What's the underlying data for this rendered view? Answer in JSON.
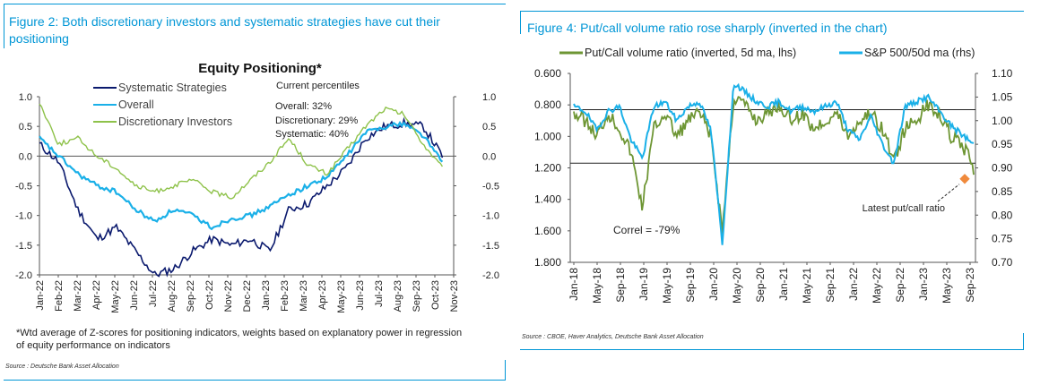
{
  "left_panel": {
    "figure_title": "Figure 2: Both discretionary investors and systematic strategies have cut their positioning",
    "footnote": "*Wtd average of Z-scores for positioning indicators, weights based on explanatory power in regression of equity performance on indicators",
    "source": "Source : Deutsche Bank Asset Allocation"
  },
  "right_panel": {
    "figure_title": "Figure 4: Put/call volume ratio rose sharply (inverted in the chart)",
    "source": "Source : CBOE, Haver Analytics, Deutsche Bank Asset Allocation"
  },
  "colors": {
    "accent": "#0096d6",
    "systematic": "#0b1a6e",
    "overall": "#1ab0e8",
    "discretionary": "#8ec24a",
    "putcall": "#6e9634",
    "sp500": "#1ab0e8",
    "marker": "#f08a3c"
  },
  "chart_data": [
    {
      "type": "line",
      "title": "Equity Positioning*",
      "xlabel": "",
      "ylabel": "",
      "ylim": [
        -2.0,
        1.0
      ],
      "y_ticks": [
        "1.0",
        "0.5",
        "0.0",
        "-0.5",
        "-1.0",
        "-1.5",
        "-2.0"
      ],
      "y_ticks_right": [
        "1.0",
        "0.5",
        "0.0",
        "-0.5",
        "-1.0",
        "-1.5",
        "-2.0"
      ],
      "x_labels": [
        "Jan-22",
        "Feb-22",
        "Mar-22",
        "Apr-22",
        "May-22",
        "Jun-22",
        "Jul-22",
        "Aug-22",
        "Sep-22",
        "Oct-22",
        "Nov-22",
        "Dec-22",
        "Jan-23",
        "Feb-23",
        "Mar-23",
        "Apr-23",
        "May-23",
        "Jun-23",
        "Jul-23",
        "Aug-23",
        "Sep-23",
        "Oct-23",
        "Nov-23"
      ],
      "grid": false,
      "legend_position": "top-left",
      "series": [
        {
          "name": "Systematic Strategies",
          "values": [
            0.2,
            -0.1,
            -0.9,
            -1.4,
            -1.2,
            -1.6,
            -2.0,
            -1.9,
            -1.6,
            -1.4,
            -1.5,
            -1.4,
            -1.6,
            -0.9,
            -0.8,
            -0.5,
            -0.2,
            0.3,
            0.5,
            0.55,
            0.5,
            0.0
          ]
        },
        {
          "name": "Overall",
          "values": [
            0.3,
            0.0,
            -0.3,
            -0.5,
            -0.6,
            -0.9,
            -1.1,
            -0.9,
            -1.0,
            -1.2,
            -1.05,
            -1.0,
            -0.85,
            -0.65,
            -0.5,
            -0.35,
            0.0,
            0.4,
            0.5,
            0.55,
            0.35,
            -0.1
          ]
        },
        {
          "name": "Discretionary Investors",
          "values": [
            0.9,
            0.2,
            0.3,
            0.0,
            -0.2,
            -0.5,
            -0.6,
            -0.5,
            -0.4,
            -0.6,
            -0.7,
            -0.4,
            -0.1,
            0.3,
            -0.15,
            -0.3,
            0.1,
            0.5,
            0.8,
            0.7,
            0.2,
            -0.2
          ]
        }
      ],
      "annotations": [
        "Current percentiles",
        "Overall: 32%",
        "Discretionary: 29%",
        "Systematic: 40%"
      ]
    },
    {
      "type": "line",
      "title": "",
      "xlabel": "",
      "ylabel": "",
      "ylim": [
        1.8,
        0.6
      ],
      "y_left_inverted": true,
      "y_ticks": [
        "0.600",
        "0.800",
        "1.000",
        "1.200",
        "1.400",
        "1.600",
        "1.800"
      ],
      "ylim_right": [
        0.7,
        1.1
      ],
      "y_ticks_right": [
        "1.10",
        "1.05",
        "1.00",
        "0.95",
        "0.90",
        "0.85",
        "0.80",
        "0.75",
        "0.70"
      ],
      "x_labels": [
        "Jan-18",
        "May-18",
        "Sep-18",
        "Jan-19",
        "May-19",
        "Sep-19",
        "Jan-20",
        "May-20",
        "Sep-20",
        "Jan-21",
        "May-21",
        "Sep-21",
        "Jan-22",
        "May-22",
        "Sep-22",
        "Jan-23",
        "May-23",
        "Sep-23"
      ],
      "grid": false,
      "reference_lines_left": [
        0.83,
        1.17
      ],
      "legend_position": "top",
      "series": [
        {
          "name": "Put/Call volume ratio (inverted, 5d ma, lhs)",
          "axis": "left",
          "values": [
            0.85,
            0.9,
            1.0,
            0.85,
            0.95,
            1.1,
            1.45,
            0.95,
            0.85,
            1.0,
            0.9,
            0.85,
            1.0,
            1.6,
            0.75,
            0.8,
            0.9,
            0.85,
            0.8,
            0.9,
            0.85,
            0.95,
            0.9,
            0.85,
            1.0,
            0.9,
            0.85,
            0.95,
            1.15,
            0.95,
            0.9,
            0.8,
            0.85,
            1.0,
            1.05,
            1.2
          ]
        },
        {
          "name": "S&P 500/50d ma (rhs)",
          "axis": "right",
          "values": [
            1.03,
            1.02,
            0.98,
            1.02,
            1.03,
            0.96,
            0.92,
            1.03,
            1.04,
            1.0,
            1.03,
            1.04,
            0.98,
            0.74,
            1.08,
            1.06,
            1.04,
            1.03,
            1.04,
            1.02,
            1.03,
            1.02,
            1.03,
            1.04,
            0.98,
            0.96,
            1.01,
            0.95,
            0.91,
            1.03,
            1.04,
            1.05,
            1.02,
            0.99,
            0.97,
            0.95
          ]
        }
      ],
      "marker": {
        "label": "Latest put/call ratio",
        "value": 1.27
      },
      "annotations": [
        "Correl = -79%"
      ]
    }
  ]
}
